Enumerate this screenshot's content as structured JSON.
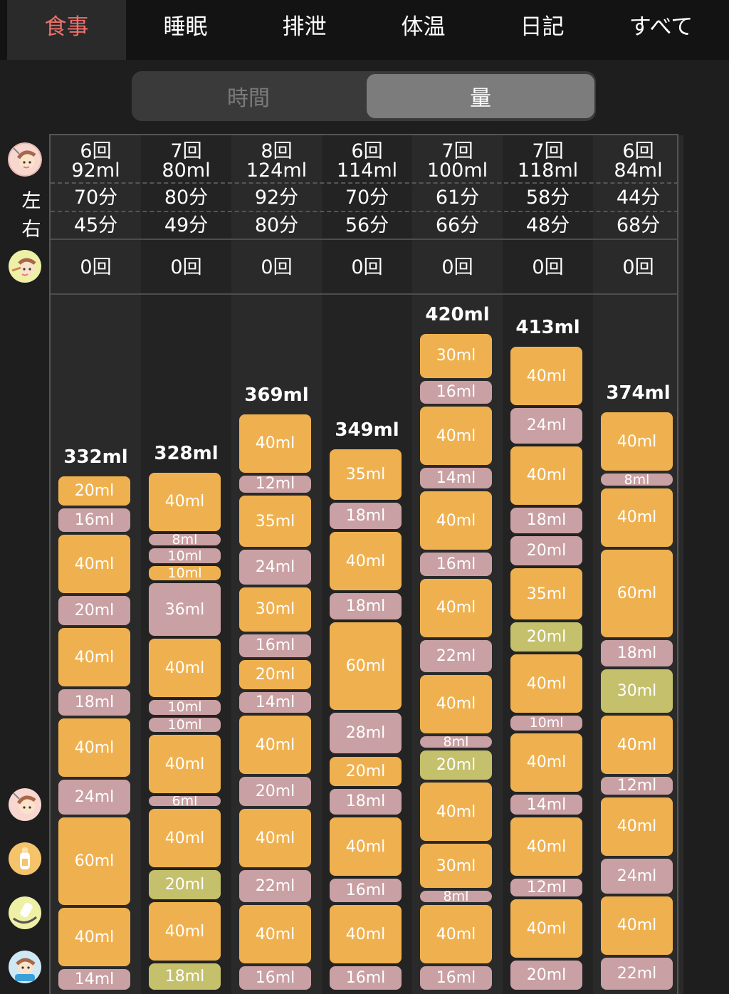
{
  "tabs": [
    {
      "label": "食事",
      "active": true
    },
    {
      "label": "睡眠",
      "active": false
    },
    {
      "label": "排泄",
      "active": false
    },
    {
      "label": "体温",
      "active": false
    },
    {
      "label": "日記",
      "active": false
    },
    {
      "label": "すべて",
      "active": false
    }
  ],
  "segmented": {
    "time": "時間",
    "amount": "量",
    "selected": "amount"
  },
  "side_labels": {
    "left": "左",
    "right": "右"
  },
  "icons": [
    "breastfeeding-icon",
    "baby-food-icon",
    "breastfeeding-legend-icon",
    "bottle-legend-icon",
    "pumped-milk-legend-icon",
    "solid-food-legend-icon"
  ],
  "colors": {
    "formula": "#efb14f",
    "breast": "#c9a0a3",
    "other": "#c4c06c",
    "active_tab": "#f0706a"
  },
  "days": [
    {
      "count": "6回",
      "amount": "92ml",
      "left": "70分",
      "right": "45分",
      "food": "0回",
      "total": "332ml",
      "segments": [
        [
          "20ml",
          "o"
        ],
        [
          "16ml",
          "p"
        ],
        [
          "40ml",
          "o"
        ],
        [
          "20ml",
          "p"
        ],
        [
          "40ml",
          "o"
        ],
        [
          "18ml",
          "p"
        ],
        [
          "40ml",
          "o"
        ],
        [
          "24ml",
          "p"
        ],
        [
          "60ml",
          "o"
        ],
        [
          "40ml",
          "o"
        ],
        [
          "14ml",
          "p"
        ]
      ]
    },
    {
      "count": "7回",
      "amount": "80ml",
      "left": "80分",
      "right": "49分",
      "food": "0回",
      "total": "328ml",
      "segments": [
        [
          "40ml",
          "o"
        ],
        [
          "8ml",
          "p"
        ],
        [
          "10ml",
          "p"
        ],
        [
          "10ml",
          "o"
        ],
        [
          "36ml",
          "p"
        ],
        [
          "40ml",
          "o"
        ],
        [
          "10ml",
          "p"
        ],
        [
          "10ml",
          "p"
        ],
        [
          "40ml",
          "o"
        ],
        [
          "6ml",
          "p"
        ],
        [
          "40ml",
          "o"
        ],
        [
          "20ml",
          "g"
        ],
        [
          "40ml",
          "o"
        ],
        [
          "18ml",
          "g"
        ]
      ]
    },
    {
      "count": "8回",
      "amount": "124ml",
      "left": "92分",
      "right": "80分",
      "food": "0回",
      "total": "369ml",
      "segments": [
        [
          "40ml",
          "o"
        ],
        [
          "12ml",
          "p"
        ],
        [
          "35ml",
          "o"
        ],
        [
          "24ml",
          "p"
        ],
        [
          "30ml",
          "o"
        ],
        [
          "16ml",
          "p"
        ],
        [
          "20ml",
          "o"
        ],
        [
          "14ml",
          "p"
        ],
        [
          "40ml",
          "o"
        ],
        [
          "20ml",
          "p"
        ],
        [
          "40ml",
          "o"
        ],
        [
          "22ml",
          "p"
        ],
        [
          "40ml",
          "o"
        ],
        [
          "16ml",
          "p"
        ]
      ]
    },
    {
      "count": "6回",
      "amount": "114ml",
      "left": "70分",
      "right": "56分",
      "food": "0回",
      "total": "349ml",
      "segments": [
        [
          "35ml",
          "o"
        ],
        [
          "18ml",
          "p"
        ],
        [
          "40ml",
          "o"
        ],
        [
          "18ml",
          "p"
        ],
        [
          "60ml",
          "o"
        ],
        [
          "28ml",
          "p"
        ],
        [
          "20ml",
          "o"
        ],
        [
          "18ml",
          "p"
        ],
        [
          "40ml",
          "o"
        ],
        [
          "16ml",
          "p"
        ],
        [
          "40ml",
          "o"
        ],
        [
          "16ml",
          "p"
        ]
      ]
    },
    {
      "count": "7回",
      "amount": "100ml",
      "left": "61分",
      "right": "66分",
      "food": "0回",
      "total": "420ml",
      "segments": [
        [
          "30ml",
          "o"
        ],
        [
          "16ml",
          "p"
        ],
        [
          "40ml",
          "o"
        ],
        [
          "14ml",
          "p"
        ],
        [
          "40ml",
          "o"
        ],
        [
          "16ml",
          "p"
        ],
        [
          "40ml",
          "o"
        ],
        [
          "22ml",
          "p"
        ],
        [
          "40ml",
          "o"
        ],
        [
          "8ml",
          "p"
        ],
        [
          "20ml",
          "g"
        ],
        [
          "40ml",
          "o"
        ],
        [
          "30ml",
          "o"
        ],
        [
          "8ml",
          "p"
        ],
        [
          "40ml",
          "o"
        ],
        [
          "16ml",
          "p"
        ]
      ]
    },
    {
      "count": "7回",
      "amount": "118ml",
      "left": "58分",
      "right": "48分",
      "food": "0回",
      "total": "413ml",
      "segments": [
        [
          "40ml",
          "o"
        ],
        [
          "24ml",
          "p"
        ],
        [
          "40ml",
          "o"
        ],
        [
          "18ml",
          "p"
        ],
        [
          "20ml",
          "p"
        ],
        [
          "35ml",
          "o"
        ],
        [
          "20ml",
          "g"
        ],
        [
          "40ml",
          "o"
        ],
        [
          "10ml",
          "p"
        ],
        [
          "40ml",
          "o"
        ],
        [
          "14ml",
          "p"
        ],
        [
          "40ml",
          "o"
        ],
        [
          "12ml",
          "p"
        ],
        [
          "40ml",
          "o"
        ],
        [
          "20ml",
          "p"
        ]
      ]
    },
    {
      "count": "6回",
      "amount": "84ml",
      "left": "44分",
      "right": "68分",
      "food": "0回",
      "total": "374ml",
      "segments": [
        [
          "40ml",
          "o"
        ],
        [
          "8ml",
          "p"
        ],
        [
          "40ml",
          "o"
        ],
        [
          "60ml",
          "o"
        ],
        [
          "18ml",
          "p"
        ],
        [
          "30ml",
          "g"
        ],
        [
          "40ml",
          "o"
        ],
        [
          "12ml",
          "p"
        ],
        [
          "40ml",
          "o"
        ],
        [
          "24ml",
          "p"
        ],
        [
          "40ml",
          "o"
        ],
        [
          "22ml",
          "p"
        ]
      ]
    }
  ]
}
